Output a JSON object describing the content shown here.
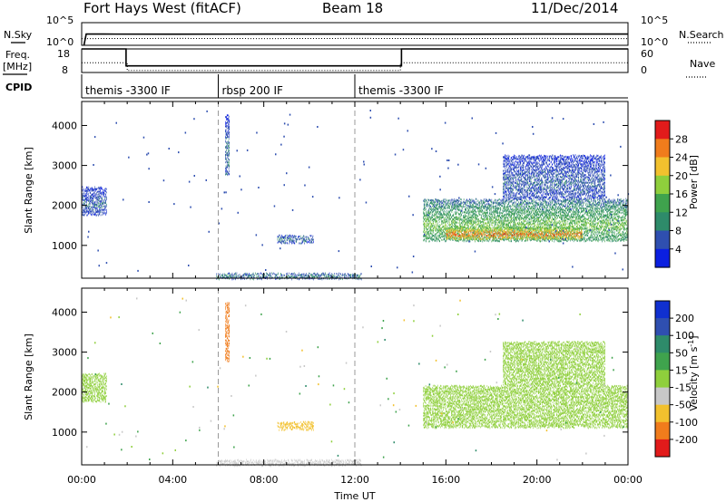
{
  "header": {
    "station": "Fort Hays West (fitACF)",
    "beam": "Beam 18",
    "date": "11/Dec/2014"
  },
  "panel_labels": {
    "nsky": "N.Sky",
    "nsearch": "N.Search",
    "freq": "Freq.",
    "mhz": "[MHz]",
    "nave": "Nave",
    "cpid": "CPID"
  },
  "noise_axis": {
    "top": "10^5",
    "bottom": "10^0"
  },
  "freq_axis": {
    "left": [
      "18",
      "8"
    ],
    "right": [
      "60",
      "0"
    ]
  },
  "cpid_segments": [
    {
      "label": "themis -3300 IF",
      "start": 0,
      "end": 6
    },
    {
      "label": "rbsp 200 IF",
      "start": 6,
      "end": 12
    },
    {
      "label": "themis -3300 IF",
      "start": 12,
      "end": 24
    }
  ],
  "chart_data": [
    {
      "type": "line",
      "name": "noise",
      "series": [
        {
          "name": "N.Sky",
          "x": [
            0.1,
            0.2,
            1,
            4,
            8,
            12,
            16,
            20,
            24
          ],
          "values": [
            1,
            300,
            300,
            290,
            300,
            300,
            290,
            300,
            300
          ]
        },
        {
          "name": "N.Search",
          "x": [
            0,
            4,
            8,
            12,
            16,
            20,
            24
          ],
          "values": [
            120,
            130,
            120,
            130,
            120,
            130,
            120
          ]
        }
      ],
      "ylim_labels": [
        "10^0",
        "10^5"
      ]
    },
    {
      "type": "line",
      "name": "frequency-nave",
      "series": [
        {
          "name": "Freq.",
          "x": [
            0,
            1.95,
            1.95,
            14.05,
            14.05,
            24
          ],
          "values": [
            18,
            18,
            10.8,
            10.8,
            18,
            18
          ]
        },
        {
          "name": "Nave",
          "x": [
            0,
            2,
            2,
            14,
            14,
            24
          ],
          "values": [
            25,
            25,
            5,
            5,
            25,
            25
          ]
        }
      ],
      "ylim": [
        8,
        18
      ],
      "y2lim": [
        0,
        60
      ]
    },
    {
      "type": "heatmap",
      "name": "power",
      "ylabel": "Slant Range [km]",
      "colorbar_label": "Power [dB]",
      "colorbar_ticks": [
        "4",
        "8",
        "12",
        "16",
        "20",
        "24",
        "28"
      ],
      "colorbar_colors": [
        "#0b1fe0",
        "#2f4fb0",
        "#2e8b6a",
        "#3fa34d",
        "#8fcf3c",
        "#f2c12e",
        "#f07c1c",
        "#e21b1b"
      ],
      "yticks": [
        1000,
        2000,
        3000,
        4000
      ],
      "ylim": [
        180,
        4600
      ],
      "xlim": [
        0,
        24
      ],
      "features": [
        {
          "t0": 0.0,
          "t1": 1.1,
          "r0": 1800,
          "r1": 2500,
          "p": 6
        },
        {
          "t0": 8.6,
          "t1": 10.2,
          "r0": 1100,
          "r1": 1300,
          "p": 7
        },
        {
          "t0": 5.9,
          "t1": 12.3,
          "r0": 200,
          "r1": 350,
          "p": 8
        },
        {
          "t0": 15.0,
          "t1": 24.0,
          "r0": 1150,
          "r1": 2200,
          "p": 14
        },
        {
          "t0": 16.0,
          "t1": 22.0,
          "r0": 1200,
          "r1": 1500,
          "p": 24
        },
        {
          "t0": 18.5,
          "t1": 23.0,
          "r0": 2200,
          "r1": 3300,
          "p": 6
        },
        {
          "t0": 6.3,
          "t1": 6.5,
          "r0": 2800,
          "r1": 4300,
          "p": 7
        }
      ]
    },
    {
      "type": "heatmap",
      "name": "velocity",
      "ylabel": "Slant Range [km]",
      "xlabel": "Time UT",
      "colorbar_label": "Velocity [m s^-1]",
      "colorbar_ticks": [
        "200",
        "100",
        "50",
        "15",
        "-15",
        "-50",
        "-100",
        "-200"
      ],
      "colorbar_colors": [
        "#1030d0",
        "#2f4fb0",
        "#2e8b6a",
        "#3fa34d",
        "#8fcf3c",
        "#c8c8c8",
        "#f2c12e",
        "#f07c1c",
        "#e21b1b"
      ],
      "yticks": [
        1000,
        2000,
        3000,
        4000
      ],
      "xticks": [
        "00:00",
        "04:00",
        "08:00",
        "12:00",
        "16:00",
        "20:00",
        "00:00"
      ],
      "ylim": [
        180,
        4600
      ],
      "xlim": [
        0,
        24
      ],
      "features": [
        {
          "t0": 0.0,
          "t1": 1.1,
          "r0": 1800,
          "r1": 2500,
          "v": 0
        },
        {
          "t0": 8.6,
          "t1": 10.2,
          "r0": 1100,
          "r1": 1300,
          "v": -60
        },
        {
          "t0": 5.9,
          "t1": 12.3,
          "r0": 200,
          "r1": 350,
          "v": -40
        },
        {
          "t0": 15.0,
          "t1": 24.0,
          "r0": 1150,
          "r1": 2200,
          "v": 0
        },
        {
          "t0": 18.5,
          "t1": 23.0,
          "r0": 2200,
          "r1": 3300,
          "v": 5
        },
        {
          "t0": 6.3,
          "t1": 6.5,
          "r0": 2800,
          "r1": 4300,
          "v": -120
        }
      ]
    }
  ]
}
